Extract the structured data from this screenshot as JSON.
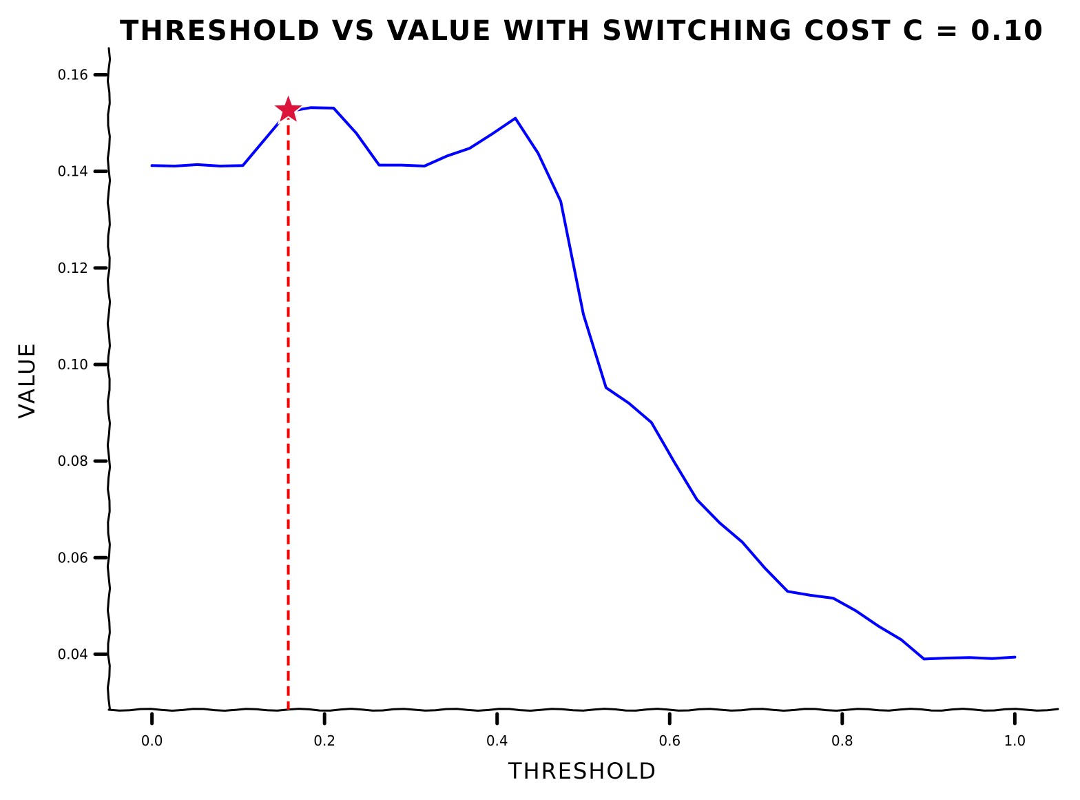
{
  "chart_data": {
    "type": "line",
    "title": "THRESHOLD VS VALUE WITH SWITCHING COST C = 0.10",
    "xlabel": "THRESHOLD",
    "ylabel": "VALUE",
    "xlim": [
      -0.05,
      1.05
    ],
    "ylim": [
      0.0285,
      0.1655
    ],
    "xticks": [
      0.0,
      0.2,
      0.4,
      0.6,
      0.8,
      1.0
    ],
    "xtick_labels": [
      "0.0",
      "0.2",
      "0.4",
      "0.6",
      "0.8",
      "1.0"
    ],
    "yticks": [
      0.04,
      0.06,
      0.08,
      0.1,
      0.12,
      0.14,
      0.16
    ],
    "ytick_labels": [
      "0.04",
      "0.06",
      "0.08",
      "0.10",
      "0.12",
      "0.14",
      "0.16"
    ],
    "grid": false,
    "series": [
      {
        "color": "#0000ff",
        "x": [
          0.0,
          0.0263,
          0.0526,
          0.0789,
          0.1053,
          0.1316,
          0.1579,
          0.1842,
          0.2105,
          0.2368,
          0.2632,
          0.2895,
          0.3158,
          0.3421,
          0.3684,
          0.3947,
          0.4211,
          0.4474,
          0.4737,
          0.5,
          0.5263,
          0.5526,
          0.5789,
          0.6053,
          0.6316,
          0.6579,
          0.6842,
          0.7105,
          0.7368,
          0.7632,
          0.7895,
          0.8158,
          0.8421,
          0.8684,
          0.8947,
          0.9211,
          0.9474,
          0.9737,
          1.0
        ],
        "y": [
          0.1412,
          0.1411,
          0.1414,
          0.1411,
          0.1412,
          0.1468,
          0.1524,
          0.1532,
          0.1531,
          0.1479,
          0.1413,
          0.1413,
          0.1411,
          0.1432,
          0.1448,
          0.1478,
          0.151,
          0.1438,
          0.1338,
          0.1104,
          0.0952,
          0.092,
          0.088,
          0.0798,
          0.072,
          0.0672,
          0.0632,
          0.0578,
          0.053,
          0.0522,
          0.0516,
          0.049,
          0.0458,
          0.043,
          0.039,
          0.0392,
          0.0393,
          0.0391,
          0.0394
        ]
      }
    ],
    "optimum": {
      "x": 0.158,
      "y": 0.1527,
      "marker": "star",
      "marker_color": "#dc143c",
      "line_color": "#ff0000",
      "line_style": "dashed"
    }
  }
}
